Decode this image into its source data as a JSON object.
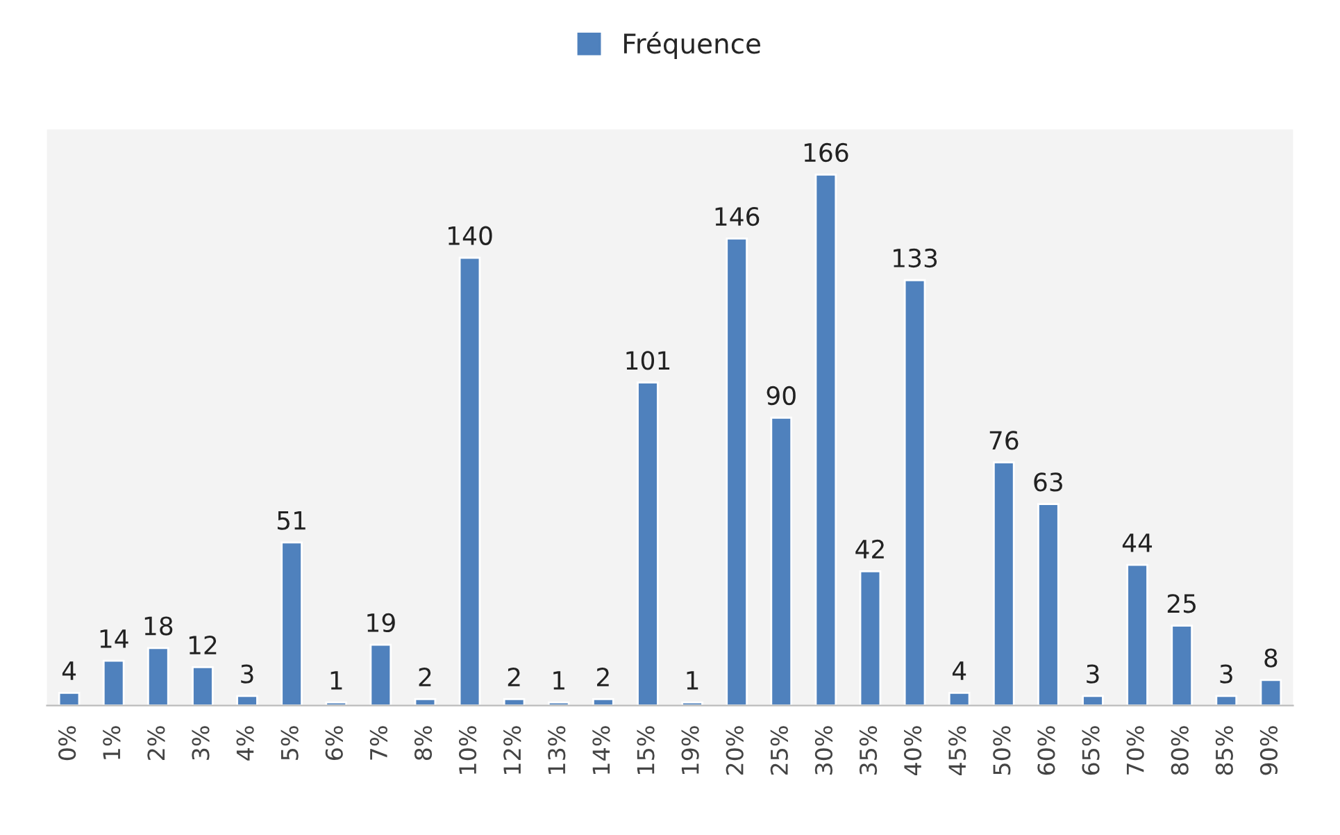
{
  "chart_data": {
    "type": "bar",
    "categories": [
      "0%",
      "1%",
      "2%",
      "3%",
      "4%",
      "5%",
      "6%",
      "7%",
      "8%",
      "10%",
      "12%",
      "13%",
      "14%",
      "15%",
      "19%",
      "20%",
      "25%",
      "30%",
      "35%",
      "40%",
      "45%",
      "50%",
      "60%",
      "65%",
      "70%",
      "80%",
      "85%",
      "90%"
    ],
    "series": [
      {
        "name": "Fréquence",
        "color": "#4f81bd",
        "values": [
          4,
          14,
          18,
          12,
          3,
          51,
          1,
          19,
          2,
          140,
          2,
          1,
          2,
          101,
          1,
          146,
          90,
          166,
          42,
          133,
          4,
          76,
          63,
          3,
          44,
          25,
          3,
          8
        ]
      }
    ],
    "data_labels": true,
    "legend": "top",
    "grid": false,
    "tick_labels": "x"
  }
}
